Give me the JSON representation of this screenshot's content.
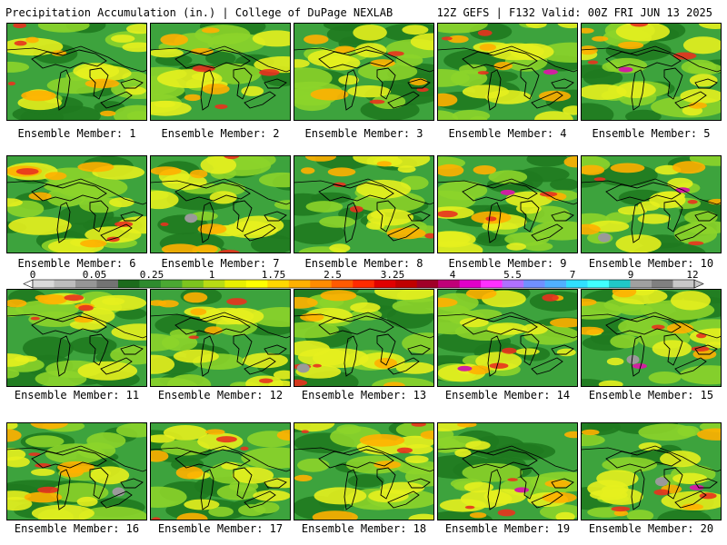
{
  "header": {
    "left": "Precipitation Accumulation (in.) | College of DuPage NEXLAB",
    "right": "12Z GEFS | F132 Valid: 00Z FRI JUN 13 2025"
  },
  "colorbar": {
    "labels": [
      "0",
      "0.05",
      "0.25",
      "1",
      "1.75",
      "2.5",
      "3.25",
      "4",
      "5.5",
      "7",
      "9",
      "12"
    ],
    "colors": [
      "#d9d9d9",
      "#bdbdbd",
      "#969696",
      "#737373",
      "#1c6b1c",
      "#2e8b2e",
      "#4aa832",
      "#7cc41e",
      "#b8dc14",
      "#e8f000",
      "#ffff00",
      "#ffd700",
      "#ffb000",
      "#ff8c00",
      "#ff5a00",
      "#ff2a00",
      "#e00000",
      "#c00000",
      "#a00028",
      "#c00078",
      "#e000c8",
      "#ff30ff",
      "#b070ff",
      "#7090ff",
      "#50b0ff",
      "#30e0ff",
      "#40ffff",
      "#20c8c8",
      "#a0a0a0",
      "#808080",
      "#c8c8c8"
    ]
  },
  "members": [
    {
      "label": "Ensemble Member: 1"
    },
    {
      "label": "Ensemble Member: 2"
    },
    {
      "label": "Ensemble Member: 3"
    },
    {
      "label": "Ensemble Member: 4"
    },
    {
      "label": "Ensemble Member: 5"
    },
    {
      "label": "Ensemble Member: 6"
    },
    {
      "label": "Ensemble Member: 7"
    },
    {
      "label": "Ensemble Member: 8"
    },
    {
      "label": "Ensemble Member: 9"
    },
    {
      "label": "Ensemble Member: 10"
    },
    {
      "label": "Ensemble Member: 11"
    },
    {
      "label": "Ensemble Member: 12"
    },
    {
      "label": "Ensemble Member: 13"
    },
    {
      "label": "Ensemble Member: 14"
    },
    {
      "label": "Ensemble Member: 15"
    },
    {
      "label": "Ensemble Member: 16"
    },
    {
      "label": "Ensemble Member: 17"
    },
    {
      "label": "Ensemble Member: 18"
    },
    {
      "label": "Ensemble Member: 19"
    },
    {
      "label": "Ensemble Member: 20"
    }
  ],
  "map_colors": {
    "dark_green": "#1f7a1f",
    "green": "#3da33d",
    "light_green": "#8cd42a",
    "yellow": "#e6f01e",
    "orange": "#ffb000",
    "red": "#e8321e",
    "magenta": "#d020a0",
    "gray": "#9a9a9a",
    "outline": "#000000"
  }
}
